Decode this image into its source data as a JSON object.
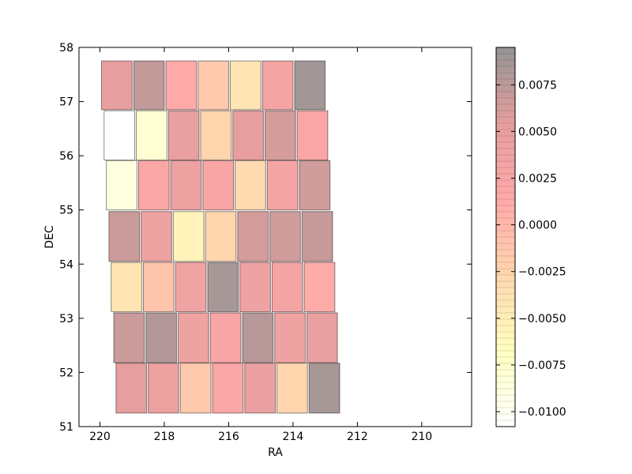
{
  "chart_data": {
    "type": "heatmap",
    "xlabel": "RA",
    "ylabel": "DEC",
    "xlim": [
      220.65,
      208.45
    ],
    "ylim": [
      51,
      58
    ],
    "x_ticks": [
      220,
      218,
      216,
      214,
      212,
      210
    ],
    "y_ticks": [
      51,
      52,
      53,
      54,
      55,
      56,
      57,
      58
    ],
    "x_tick_labels": [
      "220",
      "218",
      "216",
      "214",
      "212",
      "210"
    ],
    "y_tick_labels": [
      "51",
      "52",
      "53",
      "54",
      "55",
      "56",
      "57",
      "58"
    ],
    "colorbar": {
      "range": [
        -0.0108,
        0.0095
      ],
      "ticks": [
        -0.01,
        -0.0075,
        -0.005,
        -0.0025,
        0.0,
        0.0025,
        0.005,
        0.0075
      ],
      "tick_labels": [
        "−0.0100",
        "−0.0075",
        "−0.0050",
        "−0.0025",
        "0.0000",
        "0.0025",
        "0.0050",
        "0.0075"
      ],
      "colors": [
        "#ffffff",
        "#ffff66",
        "#ffa040",
        "#ff3030",
        "#c01818",
        "#000000"
      ]
    },
    "rows": [
      {
        "dec_range": [
          56.85,
          57.75
        ],
        "cells": [
          {
            "ra": [
              219.95,
              219.0
            ],
            "value": 0.005
          },
          {
            "ra": [
              218.95,
              218.0
            ],
            "value": 0.0072
          },
          {
            "ra": [
              217.95,
              217.0
            ],
            "value": 0.0012
          },
          {
            "ra": [
              216.95,
              216.0
            ],
            "value": -0.0015
          },
          {
            "ra": [
              215.95,
              215.0
            ],
            "value": -0.004
          },
          {
            "ra": [
              214.95,
              214.0
            ],
            "value": 0.003
          },
          {
            "ra": [
              213.95,
              213.0
            ],
            "value": 0.0088
          }
        ]
      },
      {
        "dec_range": [
          55.92,
          56.83
        ],
        "cells": [
          {
            "ra": [
              219.87,
              218.92
            ],
            "value": -0.0108
          },
          {
            "ra": [
              218.87,
              217.92
            ],
            "value": -0.008
          },
          {
            "ra": [
              217.87,
              216.92
            ],
            "value": 0.0048
          },
          {
            "ra": [
              216.87,
              215.92
            ],
            "value": -0.0025
          },
          {
            "ra": [
              215.87,
              214.92
            ],
            "value": 0.0052
          },
          {
            "ra": [
              214.87,
              213.92
            ],
            "value": 0.0062
          },
          {
            "ra": [
              213.87,
              212.92
            ],
            "value": 0.0022
          }
        ]
      },
      {
        "dec_range": [
          55.0,
          55.91
        ],
        "cells": [
          {
            "ra": [
              219.8,
              218.85
            ],
            "value": -0.0088
          },
          {
            "ra": [
              218.8,
              217.85
            ],
            "value": 0.0018
          },
          {
            "ra": [
              217.8,
              216.85
            ],
            "value": 0.0042
          },
          {
            "ra": [
              216.8,
              215.85
            ],
            "value": 0.0025
          },
          {
            "ra": [
              215.8,
              214.85
            ],
            "value": -0.003
          },
          {
            "ra": [
              214.8,
              213.85
            ],
            "value": 0.003
          },
          {
            "ra": [
              213.8,
              212.85
            ],
            "value": 0.0065
          }
        ]
      },
      {
        "dec_range": [
          54.05,
          54.97
        ],
        "cells": [
          {
            "ra": [
              219.72,
              218.77
            ],
            "value": 0.0068
          },
          {
            "ra": [
              218.72,
              217.77
            ],
            "value": 0.004
          },
          {
            "ra": [
              217.72,
              216.77
            ],
            "value": -0.0055
          },
          {
            "ra": [
              216.72,
              215.77
            ],
            "value": -0.0025
          },
          {
            "ra": [
              215.72,
              214.77
            ],
            "value": 0.0062
          },
          {
            "ra": [
              214.72,
              213.77
            ],
            "value": 0.0065
          },
          {
            "ra": [
              213.72,
              212.77
            ],
            "value": 0.007
          }
        ]
      },
      {
        "dec_range": [
          53.12,
          54.03
        ],
        "cells": [
          {
            "ra": [
              219.65,
              218.7
            ],
            "value": -0.004
          },
          {
            "ra": [
              218.65,
              217.7
            ],
            "value": -0.001
          },
          {
            "ra": [
              217.65,
              216.7
            ],
            "value": 0.0035
          },
          {
            "ra": [
              216.65,
              215.7
            ],
            "value": 0.0085
          },
          {
            "ra": [
              215.65,
              214.7
            ],
            "value": 0.004
          },
          {
            "ra": [
              214.65,
              213.7
            ],
            "value": 0.003
          },
          {
            "ra": [
              213.65,
              212.7
            ],
            "value": 0.001
          }
        ]
      },
      {
        "dec_range": [
          52.18,
          53.1
        ],
        "cells": [
          {
            "ra": [
              219.57,
              218.62
            ],
            "value": 0.0068
          },
          {
            "ra": [
              218.57,
              217.62
            ],
            "value": 0.008
          },
          {
            "ra": [
              217.57,
              216.62
            ],
            "value": 0.004
          },
          {
            "ra": [
              216.57,
              215.62
            ],
            "value": 0.0025
          },
          {
            "ra": [
              215.57,
              214.62
            ],
            "value": 0.0078
          },
          {
            "ra": [
              214.57,
              213.62
            ],
            "value": 0.0038
          },
          {
            "ra": [
              213.57,
              212.62
            ],
            "value": 0.0048
          }
        ]
      },
      {
        "dec_range": [
          51.25,
          52.17
        ],
        "cells": [
          {
            "ra": [
              219.5,
              218.55
            ],
            "value": 0.0052
          },
          {
            "ra": [
              218.5,
              217.55
            ],
            "value": 0.0042
          },
          {
            "ra": [
              217.5,
              216.55
            ],
            "value": -0.0015
          },
          {
            "ra": [
              216.5,
              215.55
            ],
            "value": 0.0018
          },
          {
            "ra": [
              215.5,
              214.55
            ],
            "value": 0.0045
          },
          {
            "ra": [
              214.5,
              213.55
            ],
            "value": -0.0025
          },
          {
            "ra": [
              213.5,
              212.55
            ],
            "value": 0.0085
          }
        ]
      }
    ]
  }
}
